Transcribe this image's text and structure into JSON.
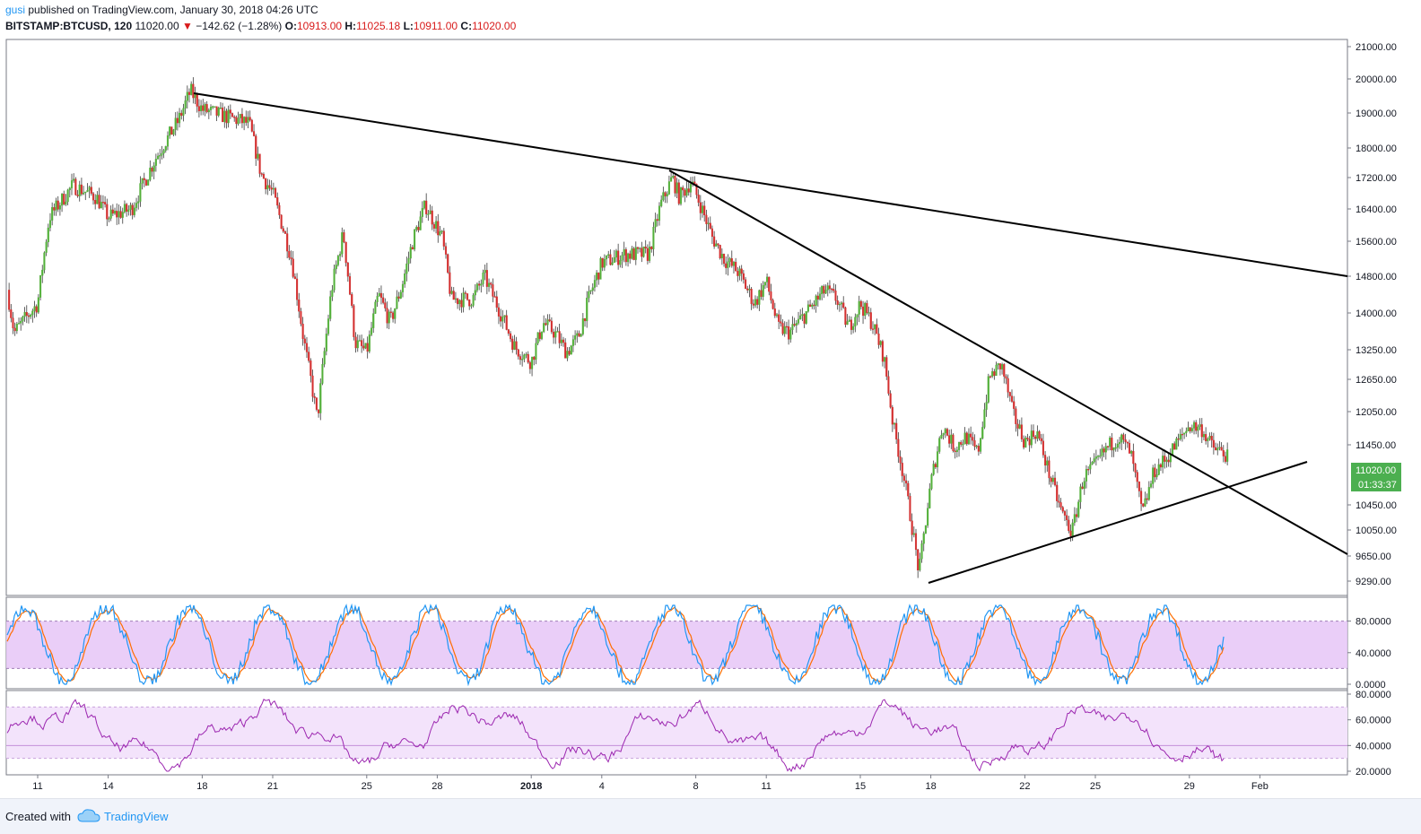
{
  "header": {
    "author": "gusi",
    "published_text": "published on TradingView.com, January 30, 2018 04:26 UTC",
    "symbol": "BITSTAMP:BTCUSD, 120",
    "last": "11020.00",
    "change": "−142.62 (−1.28%)",
    "open_label": "O:",
    "open": "10913.00",
    "high_label": "H:",
    "high": "11025.18",
    "low_label": "L:",
    "low": "10911.00",
    "close_label": "C:",
    "close": "11020.00"
  },
  "footer": {
    "created_with": "Created with",
    "brand": "TradingView"
  },
  "colors": {
    "up": "#53b03a",
    "down": "#d32f2f",
    "stoch_k": "#2196f3",
    "stoch_d": "#ff6d00",
    "rsi": "#9c27b0",
    "band": "#e6c6f7",
    "price_badge": "#4caf50"
  },
  "chart_data": [
    {
      "type": "candlestick",
      "price_axis_labels": [
        "21000.00",
        "20000.00",
        "19000.00",
        "18000.00",
        "17200.00",
        "16400.00",
        "15600.00",
        "14800.00",
        "14000.00",
        "13250.00",
        "12650.00",
        "12050.00",
        "11450.00",
        "10450.00",
        "10050.00",
        "9650.00",
        "9290.00"
      ],
      "date_labels": [
        "11",
        "14",
        "18",
        "21",
        "25",
        "28",
        "2018",
        "4",
        "8",
        "11",
        "15",
        "18",
        "22",
        "25",
        "29",
        "Feb"
      ],
      "last_price": "11020.00",
      "countdown": "01:33:37",
      "trendlines": [
        {
          "from": [
            "Dec 17",
            19650
          ],
          "to": [
            "Feb 4",
            14750
          ]
        },
        {
          "from": [
            "Jan 6",
            17400
          ],
          "to": [
            "Feb 4",
            9700
          ]
        },
        {
          "from": [
            "Jan 17",
            9280
          ],
          "to": [
            "Feb 1",
            11180
          ]
        }
      ],
      "ylim": [
        9100,
        21300
      ]
    },
    {
      "type": "line",
      "indicator": "Stochastic RSI",
      "axis_labels": [
        "80.0000",
        "40.0000",
        "0.0000"
      ],
      "band": [
        20,
        80
      ],
      "ylim": [
        -5,
        105
      ]
    },
    {
      "type": "line",
      "indicator": "RSI",
      "axis_labels": [
        "80.0000",
        "60.0000",
        "40.0000",
        "20.0000"
      ],
      "band": [
        30,
        70
      ],
      "mid": 40,
      "ylim": [
        17,
        82
      ]
    }
  ]
}
